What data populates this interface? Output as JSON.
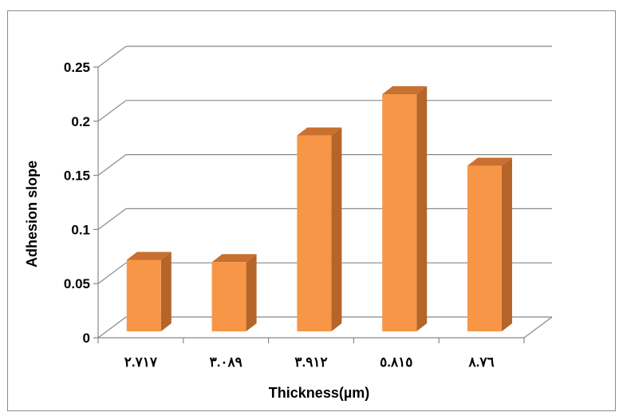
{
  "chart_data": {
    "type": "bar",
    "categories": [
      "٢.٧١٧",
      "٣.٠٨٩",
      "٣.٩١٢",
      "٥.٨١٥",
      "٨.٧٦"
    ],
    "values": [
      0.066,
      0.064,
      0.181,
      0.219,
      0.153
    ],
    "title": "",
    "xlabel": "Thickness(µm)",
    "ylabel": "Adhesion slope",
    "ylim": [
      0,
      0.25
    ],
    "yticks": [
      0,
      0.05,
      0.1,
      0.15,
      0.2,
      0.25
    ],
    "ytick_labels": [
      "0",
      "0.05",
      "0.1",
      "0.15",
      "0.2",
      "0.25"
    ],
    "grid": true,
    "legend": "none",
    "style": "3d-column",
    "colors": {
      "bar_front": "#F79646",
      "bar_side": "#B5652A",
      "bar_top": "#C8702F",
      "grid": "#888888",
      "border": "#8c8c8c"
    }
  }
}
